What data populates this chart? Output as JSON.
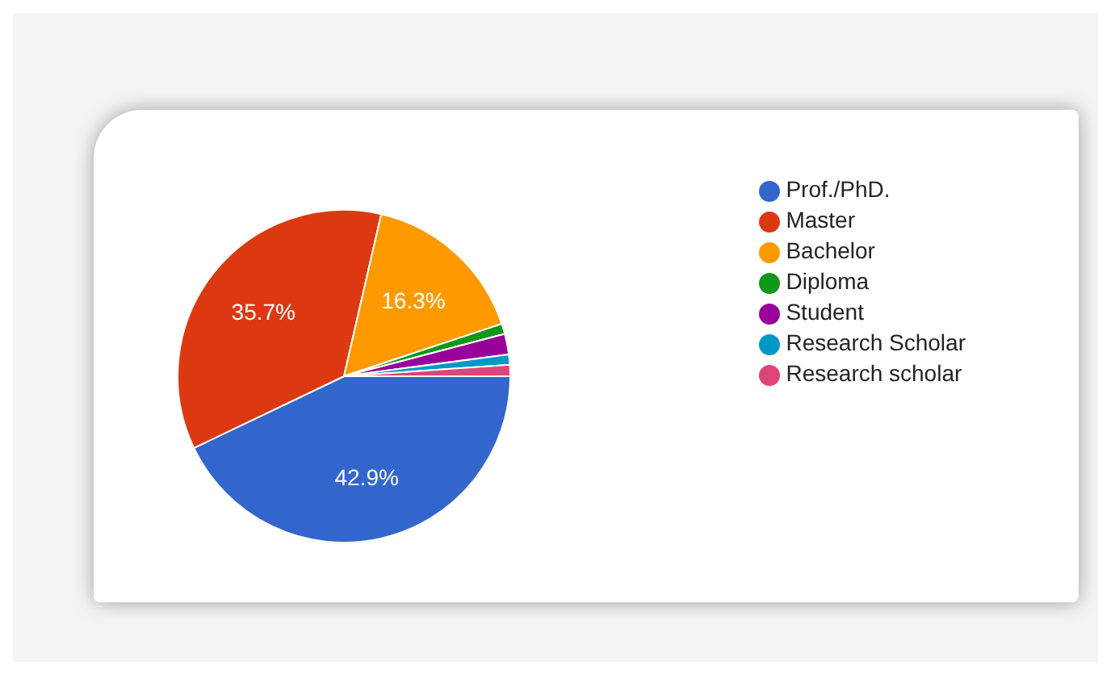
{
  "chart_data": {
    "type": "pie",
    "categories": [
      "Prof./PhD.",
      "Master",
      "Bachelor",
      "Diploma",
      "Student",
      "Research Scholar",
      "Research scholar"
    ],
    "values": [
      42.9,
      35.7,
      16.3,
      1.0,
      2.0,
      1.0,
      1.1
    ],
    "colors": [
      "#3366cc",
      "#dc3912",
      "#ff9900",
      "#109618",
      "#990099",
      "#0099c6",
      "#dd4477"
    ],
    "value_labels": [
      "42.9%",
      "35.7%",
      "16.3%",
      null,
      null,
      null,
      null
    ],
    "legend": "right"
  }
}
